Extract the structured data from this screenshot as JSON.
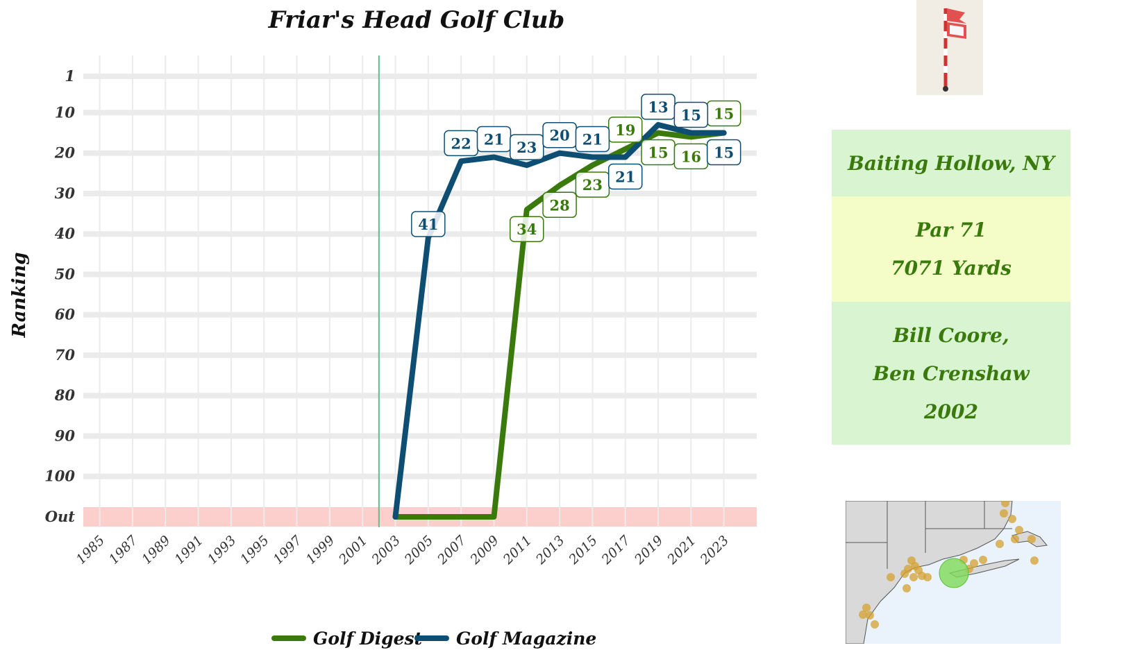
{
  "chart_data": {
    "type": "line",
    "title": "Friar's Head Golf Club",
    "ylabel": "Ranking",
    "y_ticks": [
      "1",
      "10",
      "20",
      "30",
      "40",
      "50",
      "60",
      "70",
      "80",
      "90",
      "100",
      "Out"
    ],
    "x_ticks": [
      "1985",
      "1987",
      "1989",
      "1991",
      "1993",
      "1995",
      "1997",
      "1999",
      "2001",
      "2003",
      "2005",
      "2007",
      "2009",
      "2011",
      "2013",
      "2015",
      "2017",
      "2019",
      "2021",
      "2023"
    ],
    "ylim": [
      1,
      110
    ],
    "xlim": [
      1984,
      2025
    ],
    "y_reversed": true,
    "out_value": 110,
    "opened_year": 2002,
    "series": [
      {
        "name": "Golf Digest",
        "color": "#3a7a0c",
        "points": [
          {
            "x": 2003,
            "y": "Out"
          },
          {
            "x": 2005,
            "y": "Out"
          },
          {
            "x": 2007,
            "y": "Out"
          },
          {
            "x": 2009,
            "y": "Out"
          },
          {
            "x": 2011,
            "y": 34,
            "label": "34"
          },
          {
            "x": 2013,
            "y": 28,
            "label": "28"
          },
          {
            "x": 2015,
            "y": 23,
            "label": "23"
          },
          {
            "x": 2017,
            "y": 19,
            "label": "19"
          },
          {
            "x": 2019,
            "y": 15,
            "label": "15"
          },
          {
            "x": 2021,
            "y": 16,
            "label": "16"
          },
          {
            "x": 2023,
            "y": 15,
            "label": "15"
          }
        ]
      },
      {
        "name": "Golf Magazine",
        "color": "#0e4e72",
        "points": [
          {
            "x": 2003,
            "y": "Out"
          },
          {
            "x": 2005,
            "y": 41,
            "label": "41"
          },
          {
            "x": 2007,
            "y": 22,
            "label": "22"
          },
          {
            "x": 2009,
            "y": 21,
            "label": "21"
          },
          {
            "x": 2011,
            "y": 23,
            "label": "23"
          },
          {
            "x": 2013,
            "y": 20,
            "label": "20"
          },
          {
            "x": 2015,
            "y": 21,
            "label": "21"
          },
          {
            "x": 2017,
            "y": 21,
            "label": "21"
          },
          {
            "x": 2019,
            "y": 13,
            "label": "13"
          },
          {
            "x": 2021,
            "y": 15,
            "label": "15"
          },
          {
            "x": 2023,
            "y": 15,
            "label": "15"
          }
        ]
      }
    ],
    "legend_position": "bottom",
    "grid": true,
    "out_band_color": "#fccfcc",
    "opened_line_color": "#5cbf8e"
  },
  "info": {
    "location": "Baiting Hollow, NY",
    "par": "Par 71",
    "yards": "7071 Yards",
    "architect_1": "Bill Coore,",
    "architect_2": "Ben Crenshaw",
    "year": "2002"
  },
  "icons": {
    "flag": "golf-flag-icon",
    "map": "region-map"
  }
}
